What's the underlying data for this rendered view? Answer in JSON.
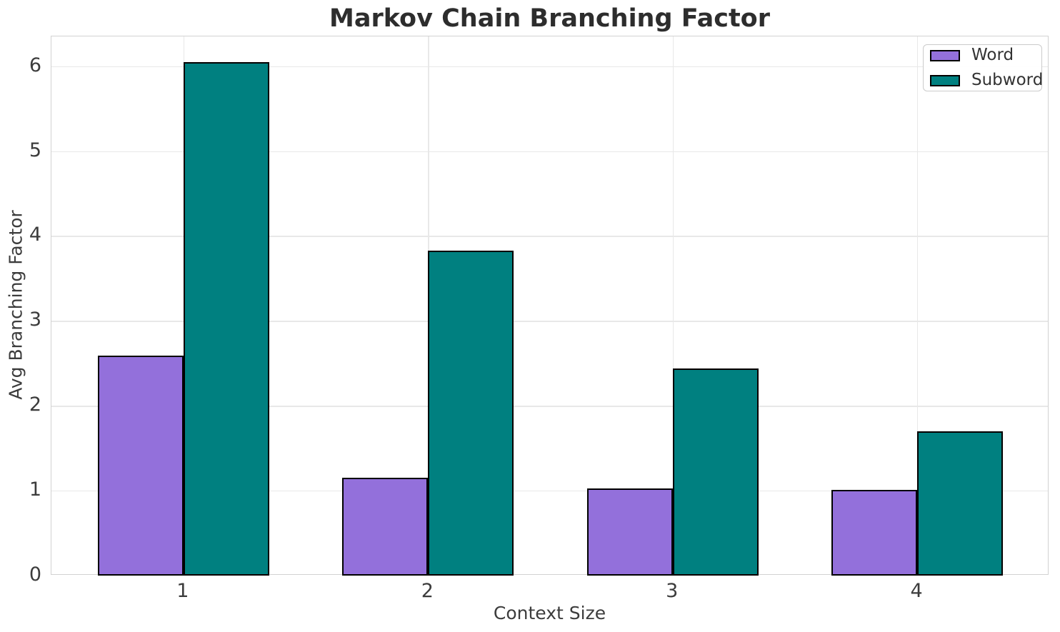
{
  "chart_data": {
    "type": "bar",
    "title": "Markov Chain Branching Factor",
    "xlabel": "Context Size",
    "ylabel": "Avg Branching Factor",
    "categories": [
      "1",
      "2",
      "3",
      "4"
    ],
    "series": [
      {
        "name": "Word",
        "color": "#9370DB",
        "values": [
          2.59,
          1.15,
          1.03,
          1.01
        ]
      },
      {
        "name": "Subword",
        "color": "#008080",
        "values": [
          6.05,
          3.83,
          2.44,
          1.7
        ]
      }
    ],
    "bar_edge_color": "#000000",
    "bar_width": 0.35,
    "ylim": [
      0,
      6.35
    ],
    "yticks": [
      0,
      1,
      2,
      3,
      4,
      5,
      6
    ],
    "grid": true,
    "legend_position": "upper right"
  }
}
